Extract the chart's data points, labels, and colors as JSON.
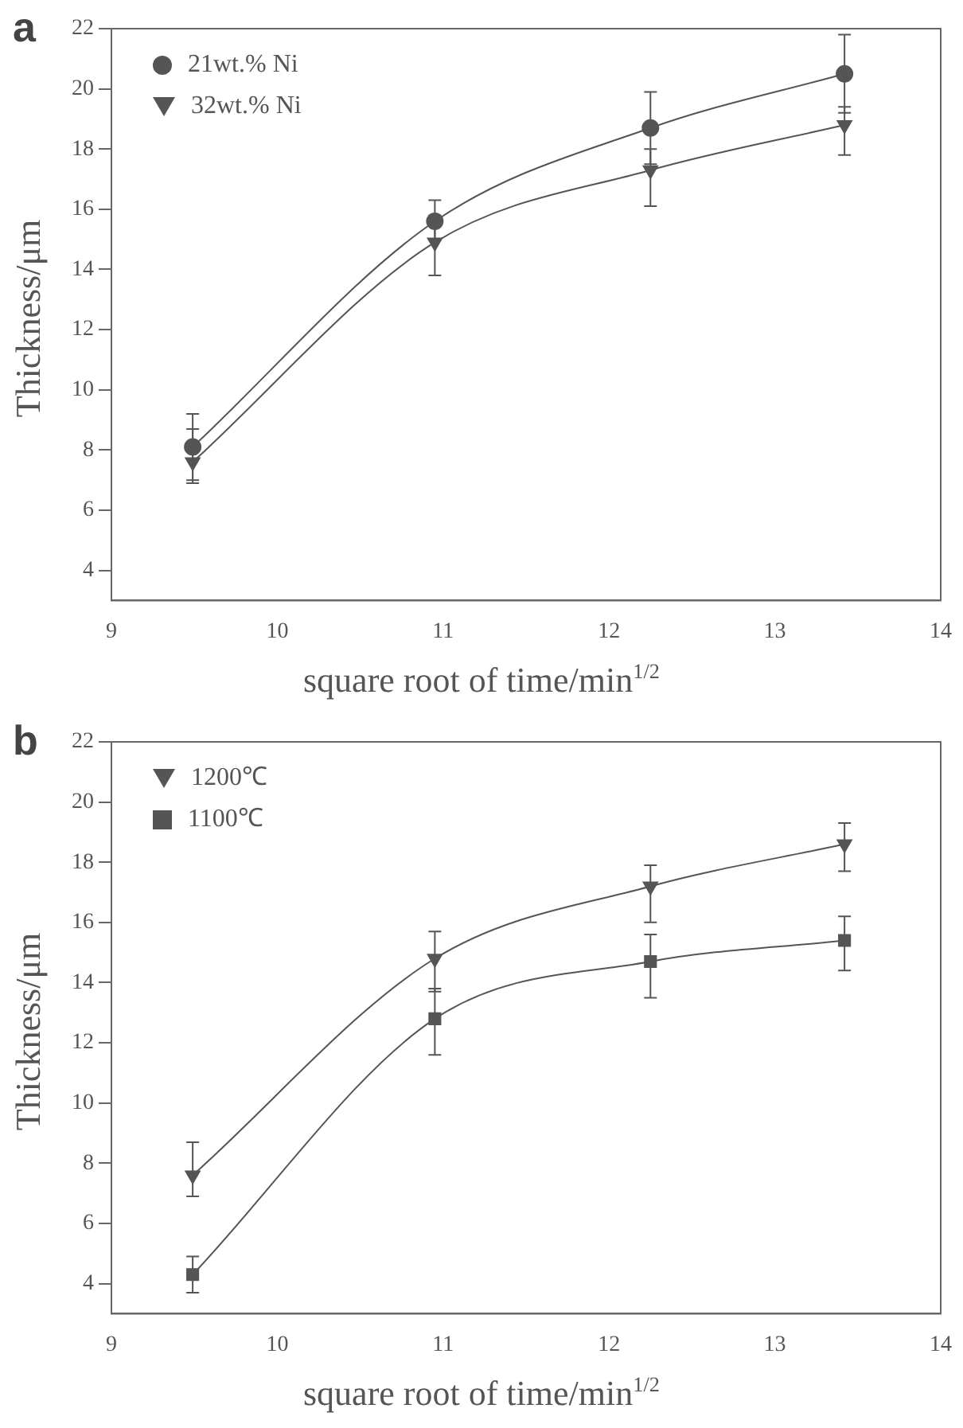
{
  "chart_data": [
    {
      "type": "line",
      "title": "a",
      "xlabel": "square root of time/min$^{1/2}$",
      "ylabel": "Thickness/μm",
      "xlim": [
        9,
        14
      ],
      "xticks": [
        9,
        10,
        11,
        12,
        13,
        14
      ],
      "ylim": [
        3,
        22
      ],
      "yticks": [
        4,
        6,
        8,
        10,
        12,
        14,
        16,
        18,
        20,
        22
      ],
      "grid": false,
      "legend": "top left",
      "line_style": "solid",
      "series": [
        {
          "name": "21wt.% Ni",
          "color": "#555555",
          "marker": "circle",
          "x": [
            9.49,
            10.95,
            12.25,
            13.42
          ],
          "values": [
            8.1,
            15.6,
            18.7,
            20.5
          ],
          "errors": [
            [
              7.0,
              9.2
            ],
            [
              15.0,
              16.3
            ],
            [
              17.5,
              19.9
            ],
            [
              19.2,
              21.8
            ]
          ]
        },
        {
          "name": "32wt.% Ni",
          "color": "#555555",
          "marker": "triangle",
          "x": [
            9.49,
            10.95,
            12.25,
            13.42
          ],
          "values": [
            7.6,
            14.9,
            17.3,
            18.8
          ],
          "errors": [
            [
              6.9,
              8.7
            ],
            [
              13.8,
              15.8
            ],
            [
              16.1,
              18.0
            ],
            [
              17.8,
              19.4
            ]
          ]
        }
      ]
    },
    {
      "type": "line",
      "title": "b",
      "xlabel": "square root of time/min$^{1/2}$",
      "ylabel": "Thickness/μm",
      "xlim": [
        9,
        14
      ],
      "xticks": [
        9,
        10,
        11,
        12,
        13,
        14
      ],
      "ylim": [
        3,
        22
      ],
      "yticks": [
        4,
        6,
        8,
        10,
        12,
        14,
        16,
        18,
        20,
        22
      ],
      "grid": false,
      "legend": "top left",
      "line_style": "solid",
      "series": [
        {
          "name": "1200℃",
          "color": "#555555",
          "marker": "triangle",
          "x": [
            9.49,
            10.95,
            12.25,
            13.42
          ],
          "values": [
            7.6,
            14.8,
            17.2,
            18.6
          ],
          "errors": [
            [
              6.9,
              8.7
            ],
            [
              13.7,
              15.7
            ],
            [
              16.0,
              17.9
            ],
            [
              17.7,
              19.3
            ]
          ]
        },
        {
          "name": "1100℃",
          "color": "#555555",
          "marker": "square",
          "x": [
            9.49,
            10.95,
            12.25,
            13.42
          ],
          "values": [
            4.3,
            12.8,
            14.7,
            15.4
          ],
          "errors": [
            [
              3.7,
              4.9
            ],
            [
              11.6,
              13.8
            ],
            [
              13.5,
              15.6
            ],
            [
              14.4,
              16.2
            ]
          ]
        }
      ]
    }
  ]
}
